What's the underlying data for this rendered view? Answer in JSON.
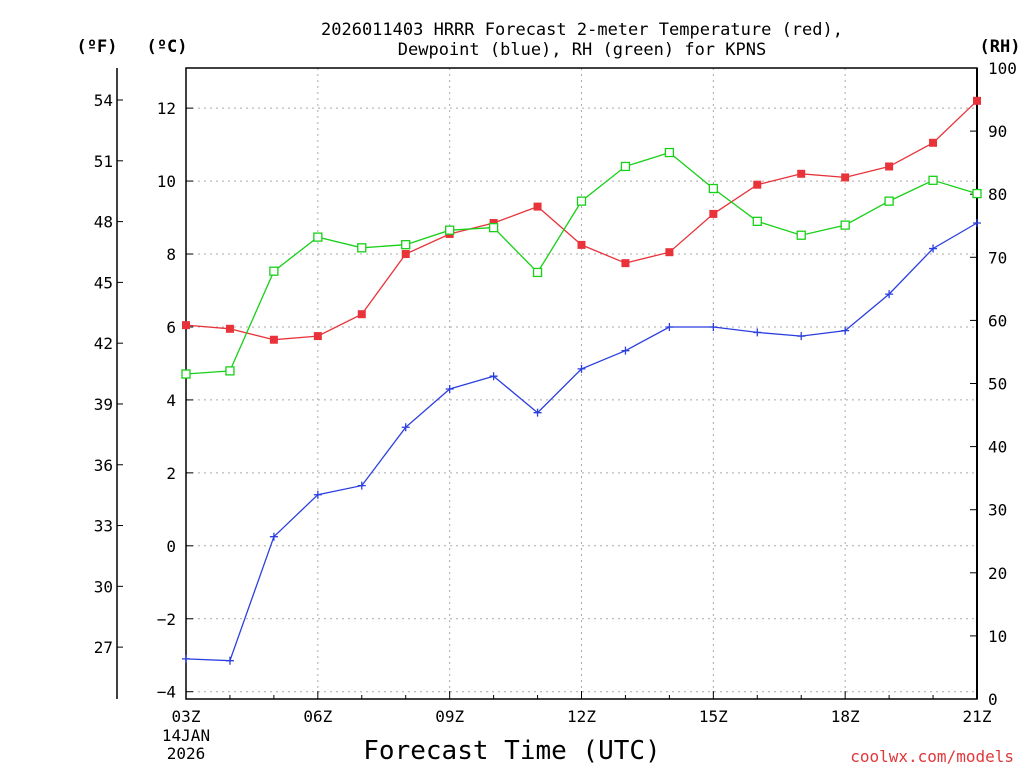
{
  "chart_data": {
    "type": "line",
    "title_line1": "2026011403 HRRR Forecast 2-meter Temperature (red),",
    "title_line2": "Dewpoint (blue), RH (green) for KPNS",
    "xlabel": "Forecast Time (UTC)",
    "date_line1": "14JAN",
    "date_line2": "2026",
    "credit": "coolwx.com/models",
    "unit_f": "(ºF)",
    "unit_c": "(ºC)",
    "unit_rh": "(RH)",
    "x_hours": [
      3,
      4,
      5,
      6,
      7,
      8,
      9,
      10,
      11,
      12,
      13,
      14,
      15,
      16,
      17,
      18,
      19,
      20,
      21
    ],
    "x_ticks": [
      3,
      6,
      9,
      12,
      15,
      18,
      21
    ],
    "x_tick_labels": [
      "03Z",
      "06Z",
      "09Z",
      "12Z",
      "15Z",
      "18Z",
      "21Z"
    ],
    "x_range": [
      3,
      21
    ],
    "c_range": [
      -4.2,
      13.1
    ],
    "c_ticks": [
      -4,
      -2,
      0,
      2,
      4,
      6,
      8,
      10,
      12
    ],
    "c_tick_labels": [
      "−4",
      "−2",
      "0",
      "2",
      "4",
      "6",
      "8",
      "10",
      "12"
    ],
    "f_ticks": [
      27,
      30,
      33,
      36,
      39,
      42,
      45,
      48,
      51,
      54
    ],
    "f_tick_labels": [
      "27",
      "30",
      "33",
      "36",
      "39",
      "42",
      "45",
      "48",
      "51",
      "54"
    ],
    "rh_range": [
      0,
      100
    ],
    "rh_ticks": [
      0,
      10,
      20,
      30,
      40,
      50,
      60,
      70,
      80,
      90,
      100
    ],
    "rh_tick_labels": [
      "0",
      "10",
      "20",
      "30",
      "40",
      "50",
      "60",
      "70",
      "80",
      "90",
      "100"
    ],
    "grid": true,
    "colors": {
      "temperature": "#e8333a",
      "dewpoint": "#2b3fe0",
      "rh": "#18d018",
      "grid": "#aaaaaa",
      "axis": "#000000"
    },
    "series": [
      {
        "name": "Temperature",
        "unit": "C",
        "values": [
          6.05,
          5.95,
          5.65,
          5.75,
          6.35,
          8.0,
          8.55,
          8.85,
          9.3,
          8.25,
          7.75,
          8.05,
          9.1,
          9.9,
          10.2,
          10.1,
          10.4,
          11.05,
          12.2
        ]
      },
      {
        "name": "Dewpoint",
        "unit": "C",
        "values": [
          -3.1,
          -3.15,
          0.25,
          1.4,
          1.65,
          3.25,
          4.3,
          4.65,
          3.65,
          4.85,
          5.35,
          6.0,
          6.0,
          5.85,
          5.75,
          5.9,
          6.9,
          8.15,
          8.85
        ]
      },
      {
        "name": "RH",
        "unit": "%",
        "values": [
          51.5,
          52,
          67.8,
          73.2,
          71.5,
          72,
          74.3,
          74.7,
          67.6,
          78.9,
          84.4,
          86.6,
          80.9,
          75.7,
          73.5,
          75.1,
          78.9,
          82.2,
          80.1
        ]
      }
    ]
  }
}
